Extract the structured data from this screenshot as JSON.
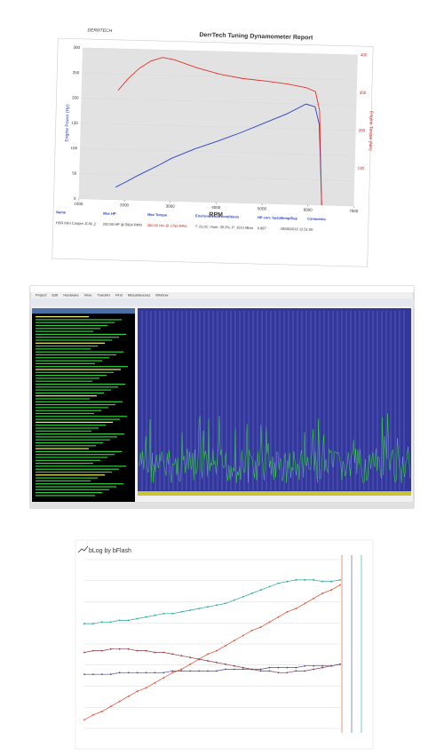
{
  "chart_data": [
    {
      "type": "line",
      "title": "DerrTech Tuning Dynamometer Report",
      "logo": "DERRTECH",
      "x_label": "RPM",
      "y_label": "Engine Power (Hp)",
      "y2_label": "Engine Torque (Nm)",
      "xlim": [
        1000,
        7000
      ],
      "xticks": [
        1000,
        2000,
        3000,
        4000,
        5000,
        6000,
        7000
      ],
      "ylim": [
        0,
        300
      ],
      "yticks": [
        0,
        50,
        100,
        150,
        200,
        250,
        300
      ],
      "y2lim": [
        0,
        400
      ],
      "y2ticks": [
        100,
        200,
        300,
        400
      ],
      "grid": true,
      "x": [
        1800,
        2000,
        2250,
        2500,
        2750,
        3000,
        3500,
        4000,
        4500,
        5000,
        5500,
        5900,
        6100,
        6200,
        6250,
        6300
      ],
      "series": [
        {
          "name": "Engine Power (Hp)",
          "color": "#2a3fc9",
          "values": [
            25,
            35,
            48,
            60,
            72,
            85,
            105,
            122,
            140,
            160,
            180,
            200,
            195,
            160,
            80,
            0
          ]
        },
        {
          "name": "Engine Torque (Nm)",
          "color": "#e0332a",
          "axis": "y2",
          "values": [
            290,
            320,
            350,
            370,
            380,
            375,
            355,
            340,
            330,
            325,
            318,
            310,
            300,
            250,
            120,
            0
          ]
        }
      ],
      "table": {
        "headers": [
          "Name",
          "Max HP",
          "Max Torque",
          "Environmental conditions",
          "HP corr. factor",
          "Temp/Day",
          "Comments"
        ],
        "row": [
          "HSR Mini Cooper JCW_2",
          "200.50 HP @ 5904 RPM",
          "380.00 Nm @ 2750 RPM",
          "T: 23.0C, Hum: 35.2%, P: 1013 Mbar",
          "0.987",
          "25/08/2016 12:51:00",
          ""
        ]
      }
    },
    {
      "type": "line",
      "title": "bLog by bFlash",
      "ylim": [
        0,
        100
      ],
      "grid": true,
      "series": [
        {
          "color": "#26a69a",
          "values": [
            62,
            62,
            63,
            63,
            64,
            64,
            65,
            66,
            67,
            68,
            68,
            69,
            70,
            71,
            72,
            73,
            74,
            76,
            78,
            80,
            82,
            84,
            86,
            87,
            88,
            88,
            88,
            87,
            87,
            88
          ]
        },
        {
          "color": "#e8462a",
          "values": [
            5,
            8,
            10,
            13,
            16,
            19,
            22,
            24,
            27,
            30,
            33,
            35,
            38,
            41,
            44,
            46,
            49,
            52,
            55,
            58,
            60,
            63,
            66,
            69,
            71,
            74,
            77,
            80,
            82,
            85
          ]
        },
        {
          "color": "#8e3a4a",
          "values": [
            45,
            46,
            46,
            47,
            47,
            47,
            46,
            46,
            45,
            45,
            44,
            43,
            42,
            41,
            40,
            39,
            38,
            37,
            36,
            35,
            34,
            34,
            33,
            33,
            34,
            34,
            35,
            36,
            37,
            38
          ]
        },
        {
          "color": "#4a4aa8",
          "values": [
            32,
            32,
            32,
            32,
            33,
            33,
            33,
            33,
            33,
            33,
            34,
            34,
            34,
            34,
            34,
            34,
            35,
            35,
            35,
            35,
            35,
            36,
            36,
            36,
            36,
            37,
            37,
            37,
            37,
            38
          ]
        }
      ]
    }
  ],
  "window": {
    "menu": [
      "Project",
      "Edit",
      "Hardware",
      "View",
      "Transfer",
      "Find",
      "Miscellaneous",
      "Window"
    ]
  }
}
